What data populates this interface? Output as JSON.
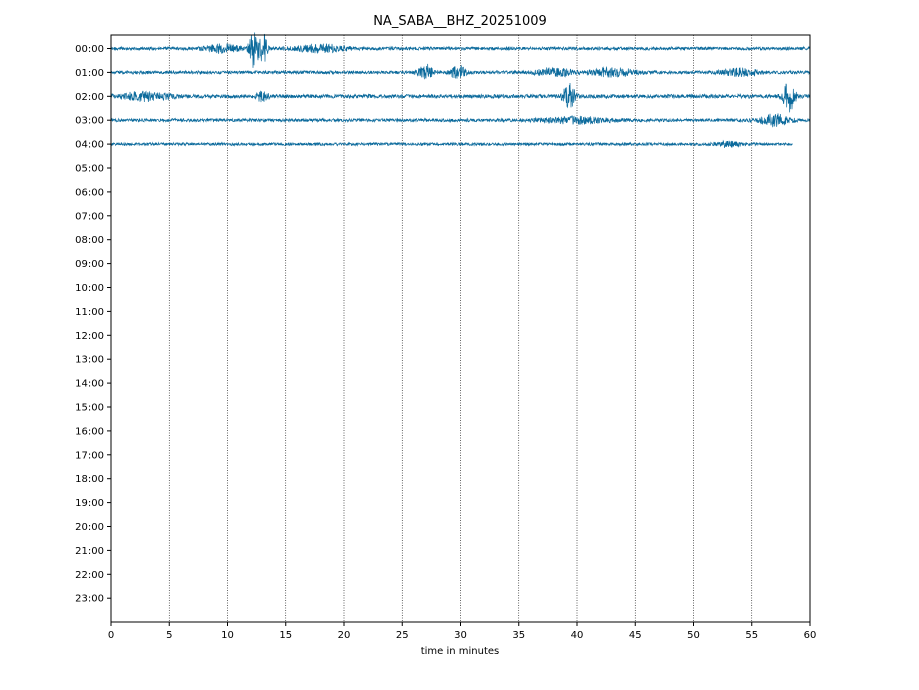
{
  "chart_data": {
    "type": "line",
    "title": "NA_SABA__BHZ_20251009",
    "xlabel": "time in minutes",
    "ylabel": "",
    "xlim": [
      0,
      60
    ],
    "x_ticks": [
      0,
      5,
      10,
      15,
      20,
      25,
      30,
      35,
      40,
      45,
      50,
      55,
      60
    ],
    "y_tick_labels": [
      "00:00",
      "01:00",
      "02:00",
      "03:00",
      "04:00",
      "05:00",
      "06:00",
      "07:00",
      "08:00",
      "09:00",
      "10:00",
      "11:00",
      "12:00",
      "13:00",
      "14:00",
      "15:00",
      "16:00",
      "17:00",
      "18:00",
      "19:00",
      "20:00",
      "21:00",
      "22:00",
      "23:00"
    ],
    "grid": "vertical dotted lines at x ticks",
    "trace_color": "#0b6a9c",
    "series": [
      {
        "hour": "00:00",
        "x_range": [
          0,
          60
        ],
        "noise_amplitude": 1.0,
        "events": [
          {
            "x": 12.3,
            "amplitude": 12,
            "width": 0.4
          },
          {
            "x": 13.1,
            "amplitude": 9,
            "width": 0.3
          },
          {
            "x": 9.5,
            "amplitude": 2.5,
            "width": 1.5
          },
          {
            "x": 18.0,
            "amplitude": 2.5,
            "width": 2.0
          }
        ]
      },
      {
        "hour": "01:00",
        "x_range": [
          0,
          60
        ],
        "noise_amplitude": 1.0,
        "events": [
          {
            "x": 27.0,
            "amplitude": 5,
            "width": 0.6
          },
          {
            "x": 29.8,
            "amplitude": 4,
            "width": 0.6
          },
          {
            "x": 38.0,
            "amplitude": 2.5,
            "width": 1.5
          },
          {
            "x": 43.0,
            "amplitude": 2.5,
            "width": 2.0
          },
          {
            "x": 54.0,
            "amplitude": 2.2,
            "width": 1.5
          }
        ]
      },
      {
        "hour": "02:00",
        "x_range": [
          0,
          60
        ],
        "noise_amplitude": 1.2,
        "events": [
          {
            "x": 3.0,
            "amplitude": 2.5,
            "width": 2.0
          },
          {
            "x": 13.0,
            "amplitude": 3,
            "width": 0.5
          },
          {
            "x": 39.3,
            "amplitude": 8,
            "width": 0.5
          },
          {
            "x": 58.2,
            "amplitude": 9,
            "width": 0.5
          }
        ]
      },
      {
        "hour": "03:00",
        "x_range": [
          0,
          60
        ],
        "noise_amplitude": 1.0,
        "events": [
          {
            "x": 57.0,
            "amplitude": 3.5,
            "width": 1.2
          },
          {
            "x": 40.0,
            "amplitude": 1.8,
            "width": 3.0
          }
        ]
      },
      {
        "hour": "04:00",
        "x_range": [
          0,
          58.5
        ],
        "noise_amplitude": 0.9,
        "events": [
          {
            "x": 53.0,
            "amplitude": 1.8,
            "width": 1.0
          }
        ]
      }
    ]
  }
}
